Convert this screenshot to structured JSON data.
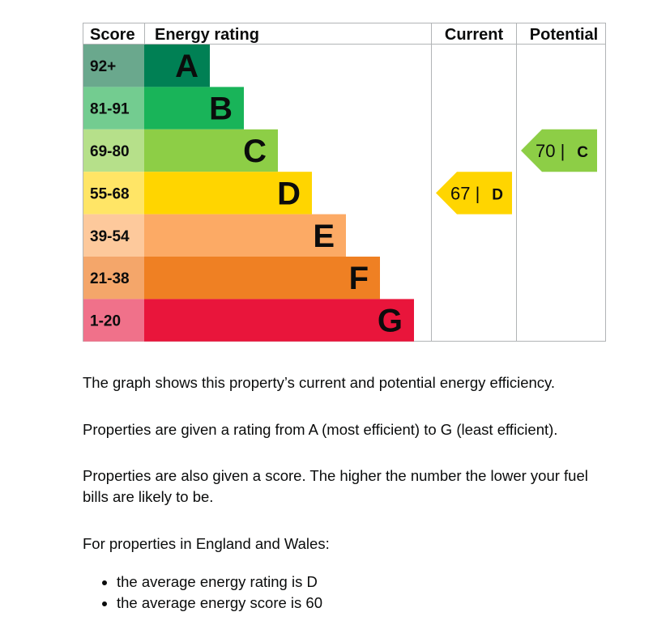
{
  "chart_data": {
    "type": "bar",
    "headers": {
      "score": "Score",
      "rating": "Energy rating",
      "current": "Current",
      "potential": "Potential"
    },
    "bands": [
      {
        "letter": "A",
        "range": "92+",
        "color": "#008054",
        "score_color": "#6aa88d"
      },
      {
        "letter": "B",
        "range": "81-91",
        "color": "#19b459",
        "score_color": "#73cc90"
      },
      {
        "letter": "C",
        "range": "69-80",
        "color": "#8dce46",
        "score_color": "#b6e08a"
      },
      {
        "letter": "D",
        "range": "55-68",
        "color": "#ffd500",
        "score_color": "#ffe566"
      },
      {
        "letter": "E",
        "range": "39-54",
        "color": "#fcaa65",
        "score_color": "#fdc99c"
      },
      {
        "letter": "F",
        "range": "21-38",
        "color": "#ef8023",
        "score_color": "#f4a66a"
      },
      {
        "letter": "G",
        "range": "1-20",
        "color": "#e9153b",
        "score_color": "#f0718a"
      }
    ],
    "current": {
      "score": "67",
      "letter": "D",
      "color": "#ffd500"
    },
    "potential": {
      "score": "70",
      "letter": "C",
      "color": "#8dce46"
    }
  },
  "description": {
    "p1": "The graph shows this property’s current and potential energy efficiency.",
    "p2": "Properties are given a rating from A (most efficient) to G (least efficient).",
    "p3": "Properties are also given a score. The higher the number the lower your fuel bills are likely to be.",
    "p4": "For properties in England and Wales:",
    "bullets": [
      "the average energy rating is D",
      "the average energy score is 60"
    ]
  }
}
